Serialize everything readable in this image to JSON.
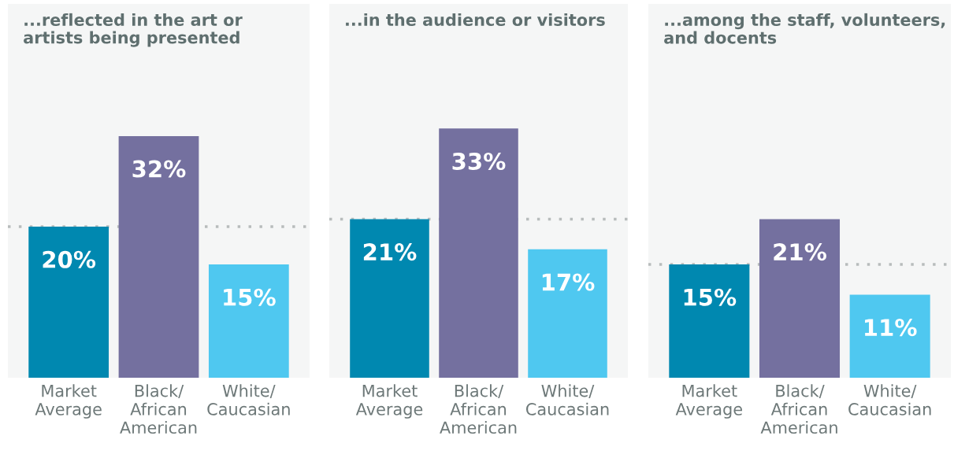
{
  "chart_data": [
    {
      "type": "bar",
      "title": "...reflected in the art or\nartists being presented",
      "categories": [
        "Market\nAverage",
        "Black/\nAfrican\nAmerican",
        "White/\nCaucasian"
      ],
      "values": [
        20,
        32,
        15
      ],
      "value_labels": [
        "20%",
        "32%",
        "15%"
      ],
      "colors": [
        "#0088b0",
        "#74709f",
        "#4fc8f0"
      ],
      "ref_lines": [
        {
          "axis": "y",
          "value": 20,
          "color": "#b8bcbc",
          "line_style": "dotted"
        }
      ]
    },
    {
      "type": "bar",
      "title": "...in the audience or visitors",
      "categories": [
        "Market\nAverage",
        "Black/\nAfrican\nAmerican",
        "White/\nCaucasian"
      ],
      "values": [
        21,
        33,
        17
      ],
      "value_labels": [
        "21%",
        "33%",
        "17%"
      ],
      "colors": [
        "#0088b0",
        "#74709f",
        "#4fc8f0"
      ],
      "ref_lines": [
        {
          "axis": "y",
          "value": 21,
          "color": "#b8bcbc",
          "line_style": "dotted"
        }
      ]
    },
    {
      "type": "bar",
      "title": "...among the staff, volunteers,\nand docents",
      "categories": [
        "Market\nAverage",
        "Black/\nAfrican\nAmerican",
        "White/\nCaucasian"
      ],
      "values": [
        15,
        21,
        11
      ],
      "value_labels": [
        "15%",
        "21%",
        "11%"
      ],
      "colors": [
        "#0088b0",
        "#74709f",
        "#4fc8f0"
      ],
      "ref_lines": [
        {
          "axis": "y",
          "value": 15,
          "color": "#b8bcbc",
          "line_style": "dotted"
        }
      ]
    }
  ]
}
